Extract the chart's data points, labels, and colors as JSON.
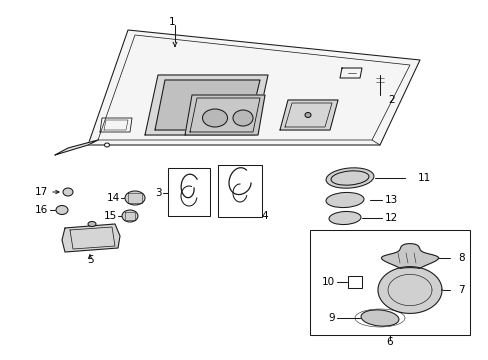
{
  "bg_color": "#ffffff",
  "fig_width": 4.89,
  "fig_height": 3.6,
  "dpi": 100,
  "line_color": "#1a1a1a",
  "text_color": "#000000",
  "font_size": 7.5,
  "lw": 0.75
}
